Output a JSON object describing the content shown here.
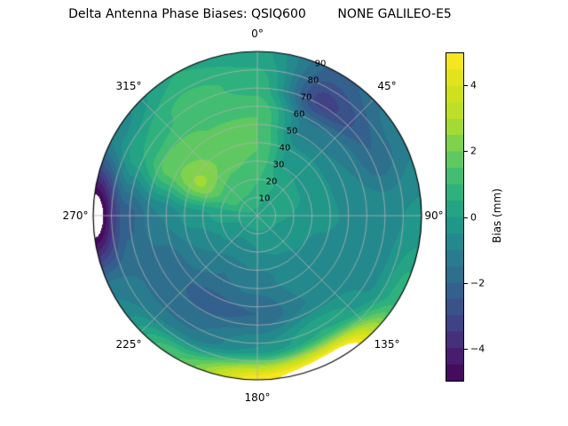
{
  "title": "Delta Antenna Phase Biases: QSIQ600        NONE GALILEO-E5",
  "chart_data": {
    "type": "heatmap",
    "projection": "polar-contourf",
    "title": "Delta Antenna Phase Biases: QSIQ600        NONE GALILEO-E5",
    "angle_labels": [
      "0°",
      "45°",
      "90°",
      "135°",
      "180°",
      "225°",
      "270°",
      "315°"
    ],
    "ring_labels": [
      "10",
      "20",
      "30",
      "40",
      "50",
      "60",
      "70",
      "80",
      "90"
    ],
    "radial_max": 90,
    "azimuth_deg": [
      0,
      30,
      60,
      90,
      120,
      150,
      180,
      210,
      240,
      270,
      300,
      330
    ],
    "radius_deg": [
      0,
      18,
      36,
      54,
      72,
      90
    ],
    "bias_mm": [
      [
        0.4,
        1.0,
        1.5,
        1.5,
        0.8,
        0.2
      ],
      [
        0.4,
        0.5,
        -0.2,
        -1.2,
        -3.2,
        -2.2
      ],
      [
        0.4,
        0.2,
        -0.3,
        -1.0,
        -2.0,
        -1.2
      ],
      [
        0.4,
        0.0,
        -0.4,
        -0.6,
        -0.6,
        -0.4
      ],
      [
        0.4,
        -0.2,
        -0.6,
        -0.8,
        -0.6,
        0.8
      ],
      [
        0.4,
        -0.4,
        -0.8,
        -1.0,
        0.5,
        6.0
      ],
      [
        0.4,
        -0.5,
        -1.2,
        -2.0,
        -0.5,
        4.8
      ],
      [
        0.4,
        -0.6,
        -1.5,
        -2.2,
        -1.5,
        1.5
      ],
      [
        0.4,
        -0.4,
        -1.0,
        -1.8,
        -1.5,
        -1.0
      ],
      [
        0.4,
        0.2,
        -0.3,
        -1.0,
        -2.2,
        -5.8
      ],
      [
        0.4,
        1.2,
        2.6,
        1.8,
        0.5,
        -0.8
      ],
      [
        0.4,
        1.2,
        1.8,
        1.5,
        1.2,
        0.5
      ]
    ],
    "contour_level_step": 0.5,
    "value_range": [
      -5,
      5
    ],
    "out_of_range_color": "#ffffff",
    "colorbar": {
      "label": "Bias (mm)",
      "ticks": [
        4,
        2,
        0,
        -2,
        -4
      ],
      "tick_labels": [
        "4",
        "2",
        "0",
        "−2",
        "−4"
      ]
    },
    "colormap": {
      "name": "viridis",
      "stops": [
        {
          "t": 0.0,
          "color": "#440154"
        },
        {
          "t": 0.1,
          "color": "#482878"
        },
        {
          "t": 0.2,
          "color": "#3e4989"
        },
        {
          "t": 0.3,
          "color": "#31688e"
        },
        {
          "t": 0.4,
          "color": "#26828e"
        },
        {
          "t": 0.5,
          "color": "#1f9e89"
        },
        {
          "t": 0.6,
          "color": "#35b779"
        },
        {
          "t": 0.7,
          "color": "#6ece58"
        },
        {
          "t": 0.8,
          "color": "#b5de2b"
        },
        {
          "t": 0.9,
          "color": "#d8e219"
        },
        {
          "t": 1.0,
          "color": "#fde725"
        }
      ]
    },
    "grid_color": "#b3b3b3",
    "outline_color": "#000000"
  }
}
